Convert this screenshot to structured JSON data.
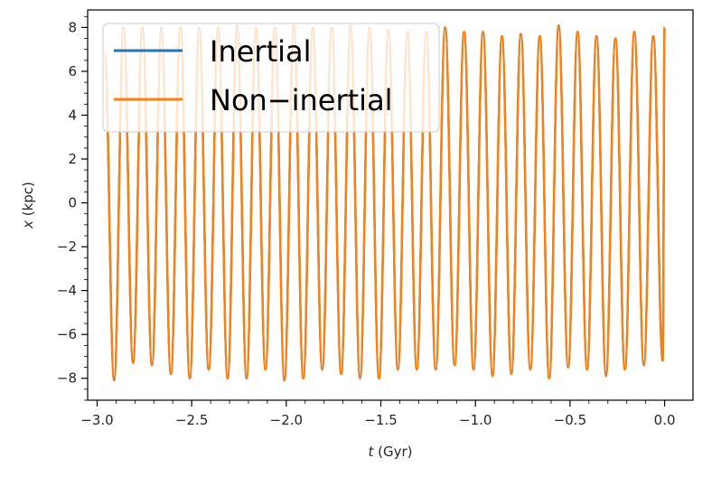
{
  "chart_data": {
    "type": "line",
    "title": "",
    "xlabel_var": "t",
    "xlabel_unit": " (Gyr)",
    "ylabel_var": "x",
    "ylabel_unit": " (kpc)",
    "xlim": [
      -3.05,
      0.15
    ],
    "ylim": [
      -9.0,
      8.8
    ],
    "grid": false,
    "legend_position": "upper-left",
    "x_ticks": [
      -3.0,
      -2.5,
      -2.0,
      -1.5,
      -1.0,
      -0.5,
      0.0
    ],
    "x_tick_labels": [
      "−3.0",
      "−2.5",
      "−2.0",
      "−1.5",
      "−1.0",
      "−0.5",
      "0.0"
    ],
    "y_ticks": [
      -8,
      -6,
      -4,
      -2,
      0,
      2,
      4,
      6,
      8
    ],
    "y_tick_labels": [
      "−8",
      "−6",
      "−4",
      "−2",
      "0",
      "2",
      "4",
      "6",
      "8"
    ],
    "series": [
      {
        "name": "Inertial",
        "color": "#1f77b4",
        "x": [
          -2.96,
          -2.91,
          -2.86,
          -2.81,
          -2.76,
          -2.71,
          -2.66,
          -2.61,
          -2.56,
          -2.51,
          -2.46,
          -2.41,
          -2.36,
          -2.31,
          -2.26,
          -2.21,
          -2.16,
          -2.11,
          -2.06,
          -2.01,
          -1.96,
          -1.91,
          -1.86,
          -1.81,
          -1.76,
          -1.71,
          -1.66,
          -1.61,
          -1.56,
          -1.51,
          -1.46,
          -1.41,
          -1.36,
          -1.31,
          -1.26,
          -1.21,
          -1.16,
          -1.11,
          -1.06,
          -1.01,
          -0.96,
          -0.91,
          -0.86,
          -0.81,
          -0.76,
          -0.71,
          -0.66,
          -0.61,
          -0.56,
          -0.51,
          -0.46,
          -0.41,
          -0.36,
          -0.31,
          -0.26,
          -0.21,
          -0.16,
          -0.11,
          -0.06,
          -0.01,
          0.0
        ],
        "y": [
          6.8,
          -8.0,
          8.0,
          -7.2,
          8.0,
          -7.4,
          8.0,
          -7.8,
          8.0,
          -8.0,
          8.0,
          -7.6,
          8.0,
          -8.0,
          8.0,
          -8.0,
          8.0,
          -7.6,
          8.0,
          -8.0,
          8.0,
          -8.0,
          8.0,
          -7.6,
          8.0,
          -7.8,
          8.0,
          -8.0,
          8.0,
          -8.0,
          7.9,
          -7.6,
          7.8,
          -7.6,
          7.8,
          -7.6,
          8.0,
          -7.4,
          7.8,
          -7.6,
          7.8,
          -7.8,
          7.6,
          -7.8,
          7.7,
          -7.6,
          7.6,
          -8.0,
          8.0,
          -7.5,
          7.8,
          -7.6,
          7.6,
          -7.8,
          7.5,
          -7.6,
          7.8,
          -7.4,
          7.6,
          -7.2,
          8.0
        ]
      },
      {
        "name": "Non−inertial",
        "color": "#ff7f0e",
        "x": [
          -2.96,
          -2.91,
          -2.86,
          -2.81,
          -2.76,
          -2.71,
          -2.66,
          -2.61,
          -2.56,
          -2.51,
          -2.46,
          -2.41,
          -2.36,
          -2.31,
          -2.26,
          -2.21,
          -2.16,
          -2.11,
          -2.06,
          -2.01,
          -1.96,
          -1.91,
          -1.86,
          -1.81,
          -1.76,
          -1.71,
          -1.66,
          -1.61,
          -1.56,
          -1.51,
          -1.46,
          -1.41,
          -1.36,
          -1.31,
          -1.26,
          -1.21,
          -1.16,
          -1.11,
          -1.06,
          -1.01,
          -0.96,
          -0.91,
          -0.86,
          -0.81,
          -0.76,
          -0.71,
          -0.66,
          -0.61,
          -0.56,
          -0.51,
          -0.46,
          -0.41,
          -0.36,
          -0.31,
          -0.26,
          -0.21,
          -0.16,
          -0.11,
          -0.06,
          -0.01,
          0.0
        ],
        "y": [
          6.8,
          -8.1,
          8.0,
          -7.3,
          8.0,
          -7.4,
          8.0,
          -7.8,
          8.0,
          -8.0,
          8.0,
          -7.6,
          8.0,
          -8.0,
          8.1,
          -8.0,
          8.0,
          -7.6,
          8.0,
          -8.1,
          8.1,
          -8.0,
          8.0,
          -7.6,
          8.0,
          -7.8,
          8.1,
          -8.0,
          8.0,
          -8.0,
          7.9,
          -7.6,
          7.8,
          -7.6,
          7.8,
          -7.6,
          8.0,
          -7.4,
          7.8,
          -7.6,
          7.8,
          -7.9,
          7.6,
          -7.8,
          7.7,
          -7.6,
          7.6,
          -8.0,
          8.1,
          -7.5,
          7.8,
          -7.6,
          7.6,
          -7.9,
          7.5,
          -7.6,
          7.8,
          -7.4,
          7.6,
          -7.2,
          8.0
        ]
      }
    ]
  }
}
